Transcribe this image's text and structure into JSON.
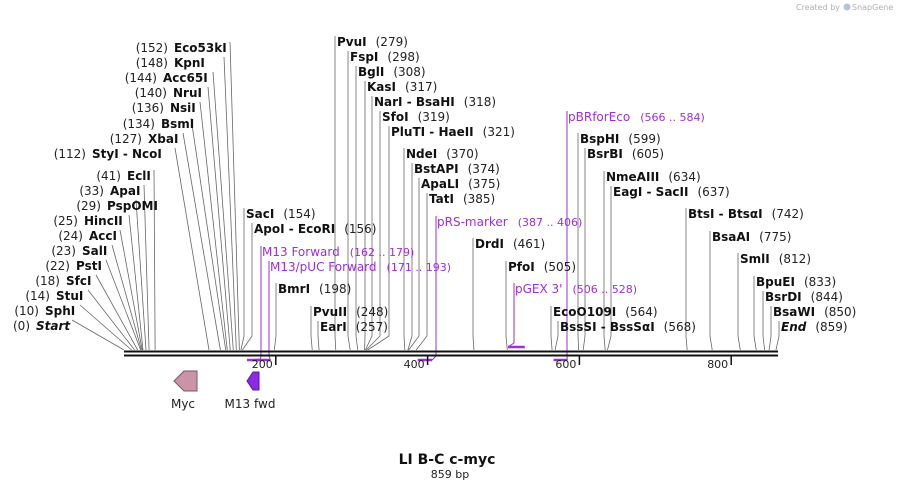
{
  "credit": "Created by",
  "brand": "SnapGene",
  "title": "LI B-C c-myc",
  "length_label": "859 bp",
  "seq_length": 859,
  "scale_ticks": [
    {
      "pos": 200,
      "label": "200"
    },
    {
      "pos": 400,
      "label": "400"
    },
    {
      "pos": 600,
      "label": "600"
    },
    {
      "pos": 800,
      "label": "800"
    }
  ],
  "left_sites": [
    {
      "num": "(152)",
      "name": "Eco53kI",
      "pos": 152,
      "italic": false
    },
    {
      "num": "(148)",
      "name": "KpnI",
      "pos": 148,
      "italic": false
    },
    {
      "num": "(144)",
      "name": "Acc65I",
      "pos": 144,
      "italic": false
    },
    {
      "num": "(140)",
      "name": "NruI",
      "pos": 140,
      "italic": false
    },
    {
      "num": "(136)",
      "name": "NsiI",
      "pos": 136,
      "italic": false
    },
    {
      "num": "(134)",
      "name": "BsmI",
      "pos": 134,
      "italic": false
    },
    {
      "num": "(127)",
      "name": "XbaI",
      "pos": 127,
      "italic": false
    },
    {
      "num": "(112)",
      "name": "StyI  -  NcoI",
      "pos": 112,
      "italic": false
    },
    {
      "num": "(41)",
      "name": "EclI",
      "pos": 41,
      "italic": false
    },
    {
      "num": "(33)",
      "name": "ApaI",
      "pos": 33,
      "italic": false
    },
    {
      "num": "(29)",
      "name": "PspOMI",
      "pos": 29,
      "italic": false
    },
    {
      "num": "(25)",
      "name": "HincII",
      "pos": 25,
      "italic": false
    },
    {
      "num": "(24)",
      "name": "AccI",
      "pos": 24,
      "italic": false
    },
    {
      "num": "(23)",
      "name": "SalI",
      "pos": 23,
      "italic": false
    },
    {
      "num": "(22)",
      "name": "PstI",
      "pos": 22,
      "italic": false
    },
    {
      "num": "(18)",
      "name": "SfcI",
      "pos": 18,
      "italic": false
    },
    {
      "num": "(14)",
      "name": "StuI",
      "pos": 14,
      "italic": false
    },
    {
      "num": "(10)",
      "name": "SphI",
      "pos": 10,
      "italic": false
    },
    {
      "num": "(0)",
      "name": "Start",
      "pos": 0,
      "italic": true
    }
  ],
  "right_sites": [
    {
      "name": "PvuI",
      "num": "(279)",
      "pos": 279
    },
    {
      "name": "FspI",
      "num": "(298)",
      "pos": 298
    },
    {
      "name": "BglI",
      "num": "(308)",
      "pos": 308
    },
    {
      "name": "KasI",
      "num": "(317)",
      "pos": 317
    },
    {
      "name": "NarI  -  BsaHI",
      "num": "(318)",
      "pos": 318
    },
    {
      "name": "SfoI",
      "num": "(319)",
      "pos": 319
    },
    {
      "name": "PluTI  -  HaeII",
      "num": "(321)",
      "pos": 321
    },
    {
      "name": "NdeI",
      "num": "(370)",
      "pos": 370
    },
    {
      "name": "BstAPI",
      "num": "(374)",
      "pos": 374
    },
    {
      "name": "ApaLI",
      "num": "(375)",
      "pos": 375
    },
    {
      "name": "TatI",
      "num": "(385)",
      "pos": 385
    },
    {
      "name": "SacI",
      "num": "(154)",
      "pos": 154
    },
    {
      "name": "ApoI  -  EcoRI",
      "num": "(156)",
      "pos": 156
    },
    {
      "name": "BmrI",
      "num": "(198)",
      "pos": 198
    },
    {
      "name": "PvuII",
      "num": "(248)",
      "pos": 248
    },
    {
      "name": "EarI",
      "num": "(257)",
      "pos": 257
    },
    {
      "name": "DrdI",
      "num": "(461)",
      "pos": 461
    },
    {
      "name": "PfoI",
      "num": "(505)",
      "pos": 505
    },
    {
      "name": "BspHI",
      "num": "(599)",
      "pos": 599
    },
    {
      "name": "BsrBI",
      "num": "(605)",
      "pos": 605
    },
    {
      "name": "NmeAIII",
      "num": "(634)",
      "pos": 634
    },
    {
      "name": "EagI  -  SacII",
      "num": "(637)",
      "pos": 637
    },
    {
      "name": "EcoO109I",
      "num": "(564)",
      "pos": 564
    },
    {
      "name": "BssSI  -  BssSαI",
      "num": "(568)",
      "pos": 568
    },
    {
      "name": "BtsI  -  BtsαI",
      "num": "(742)",
      "pos": 742
    },
    {
      "name": "BsaAI",
      "num": "(775)",
      "pos": 775
    },
    {
      "name": "SmlI",
      "num": "(812)",
      "pos": 812
    },
    {
      "name": "BpuEI",
      "num": "(833)",
      "pos": 833
    },
    {
      "name": "BsrDI",
      "num": "(844)",
      "pos": 844
    },
    {
      "name": "BsaWI",
      "num": "(850)",
      "pos": 850
    },
    {
      "name": "End",
      "num": "(859)",
      "pos": 859,
      "italic": true
    }
  ],
  "primers": [
    {
      "name": "M13 Forward",
      "range": "(162 .. 179)",
      "start": 162,
      "end": 179
    },
    {
      "name": "M13/pUC Forward",
      "range": "(171 .. 193)",
      "start": 171,
      "end": 193
    },
    {
      "name": "pRS-marker",
      "range": "(387 .. 406)",
      "start": 387,
      "end": 406
    },
    {
      "name": "pGEX 3'",
      "range": "(506 .. 528)",
      "start": 506,
      "end": 528
    },
    {
      "name": "pBRforEco",
      "range": "(566 .. 584)",
      "start": 566,
      "end": 584
    }
  ],
  "features": [
    {
      "name": "Myc",
      "color": "#c994a8",
      "direction": "left"
    },
    {
      "name": "M13 fwd",
      "color": "#8a2be2",
      "direction": "left"
    }
  ],
  "colors": {
    "primer": "#9b30d9",
    "backbone": "#111111",
    "leader": "#666666"
  }
}
